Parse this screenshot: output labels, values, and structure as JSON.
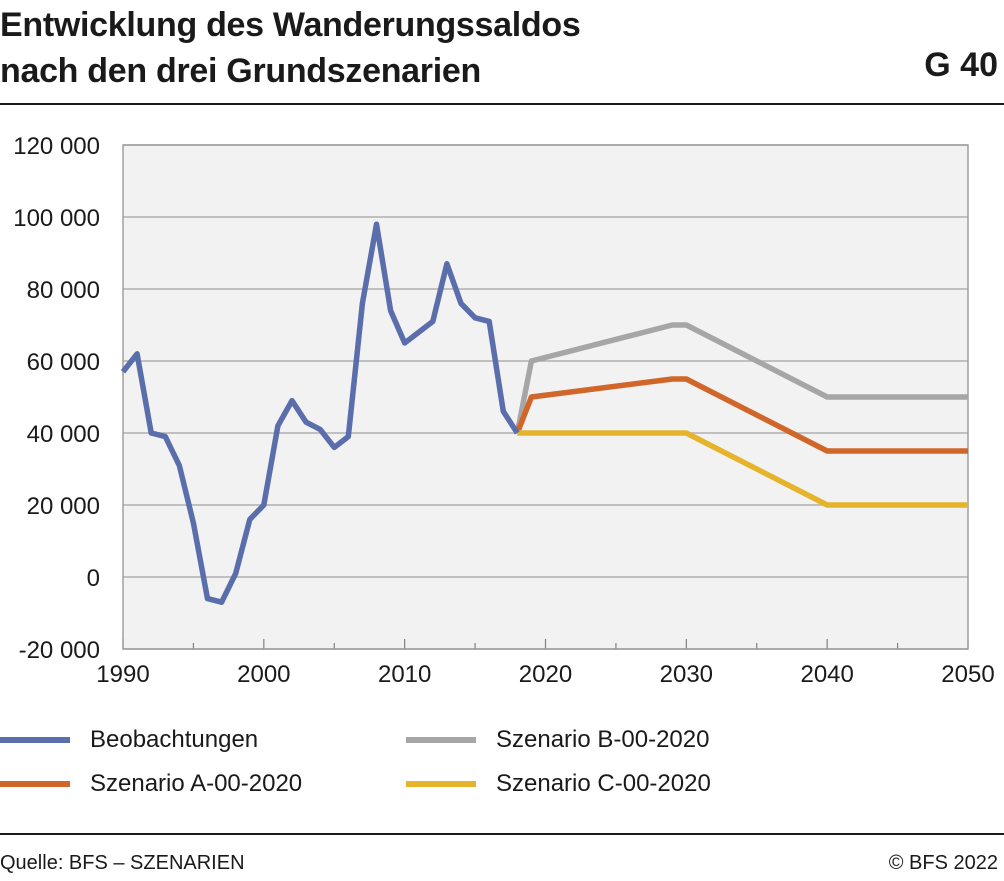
{
  "header": {
    "title_line1": "Entwicklung des Wanderungssaldos",
    "title_line2": "nach den drei Grundszenarien",
    "badge": "G 40"
  },
  "footer": {
    "source": "Quelle: BFS – SZENARIEN",
    "copyright": "© BFS 2022"
  },
  "chart_data": {
    "type": "line",
    "title": "Entwicklung des Wanderungssaldos nach den drei Grundszenarien",
    "xlabel": "",
    "ylabel": "",
    "xlim": [
      1990,
      2050
    ],
    "ylim": [
      -20000,
      120000
    ],
    "x_ticks": [
      1990,
      2000,
      2010,
      2020,
      2030,
      2040,
      2050
    ],
    "x_tick_labels": [
      "1990",
      "2000",
      "2010",
      "2020",
      "2030",
      "2040",
      "2050"
    ],
    "y_ticks": [
      -20000,
      0,
      20000,
      40000,
      60000,
      80000,
      100000,
      120000
    ],
    "y_tick_labels": [
      "-20 000",
      "0",
      "20 000",
      "40 000",
      "60 000",
      "80 000",
      "100 000",
      "120 000"
    ],
    "grid": "horizontal",
    "legend_position": "bottom",
    "series": [
      {
        "name": "Beobachtungen",
        "color": "#5a6eab",
        "x": [
          1990,
          1991,
          1992,
          1993,
          1994,
          1995,
          1996,
          1997,
          1998,
          1999,
          2000,
          2001,
          2002,
          2003,
          2004,
          2005,
          2006,
          2007,
          2008,
          2009,
          2010,
          2011,
          2012,
          2013,
          2014,
          2015,
          2016,
          2017,
          2018
        ],
        "values": [
          57000,
          62000,
          40000,
          39000,
          31000,
          15000,
          -6000,
          -7000,
          1000,
          16000,
          20000,
          42000,
          49000,
          43000,
          41000,
          36000,
          39000,
          76000,
          98000,
          74000,
          65000,
          68000,
          71000,
          87000,
          76000,
          72000,
          71000,
          46000,
          40000
        ]
      },
      {
        "name": "Szenario B-00-2020",
        "color": "#a6a6a6",
        "x": [
          2018,
          2019,
          2029,
          2030,
          2040,
          2050
        ],
        "values": [
          40000,
          60000,
          70000,
          70000,
          50000,
          50000
        ]
      },
      {
        "name": "Szenario A-00-2020",
        "color": "#d0662a",
        "x": [
          2018,
          2019,
          2029,
          2030,
          2040,
          2050
        ],
        "values": [
          40000,
          50000,
          55000,
          55000,
          35000,
          35000
        ]
      },
      {
        "name": "Szenario C-00-2020",
        "color": "#e5b42b",
        "x": [
          2018,
          2019,
          2029,
          2030,
          2040,
          2050
        ],
        "values": [
          40000,
          40000,
          40000,
          40000,
          20000,
          20000
        ]
      }
    ]
  }
}
